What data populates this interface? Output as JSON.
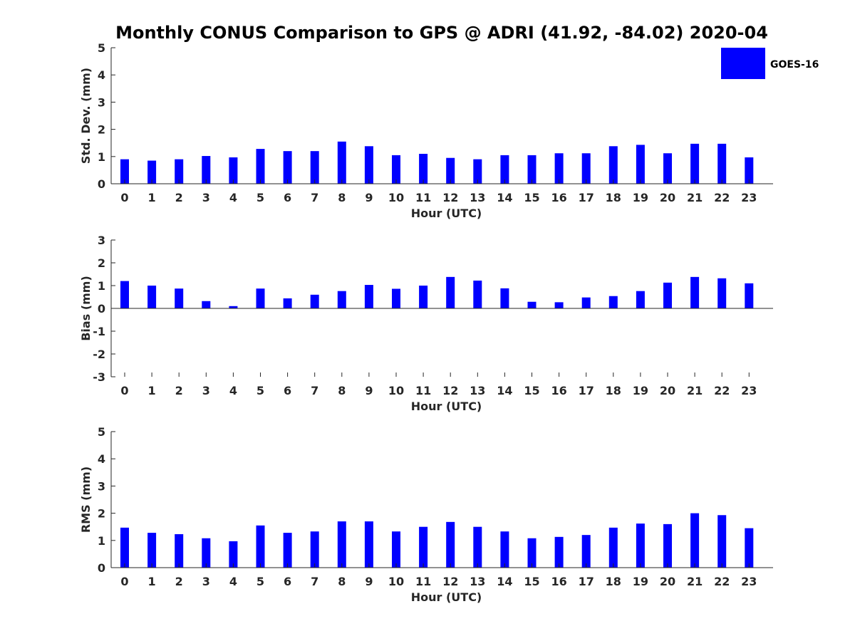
{
  "colors": {
    "bar": "#0000ff",
    "axis": "#262626",
    "text": "#000000"
  },
  "chart_data": [
    {
      "type": "bar",
      "title": "Monthly CONUS Comparison to GPS @ ADRI (41.92, -84.02) 2020-04",
      "xlabel": "Hour (UTC)",
      "ylabel": "Std. Dev. (mm)",
      "ylim": [
        0,
        5
      ],
      "yticks": [
        "0",
        "1",
        "2",
        "3",
        "4",
        "5"
      ],
      "categories": [
        "0",
        "1",
        "2",
        "3",
        "4",
        "5",
        "6",
        "7",
        "8",
        "9",
        "10",
        "11",
        "12",
        "13",
        "14",
        "15",
        "16",
        "17",
        "18",
        "19",
        "20",
        "21",
        "22",
        "23"
      ],
      "series": [
        {
          "name": "GOES-16",
          "values": [
            0.9,
            0.85,
            0.9,
            1.02,
            0.97,
            1.28,
            1.2,
            1.2,
            1.55,
            1.38,
            1.05,
            1.1,
            0.95,
            0.9,
            1.05,
            1.05,
            1.12,
            1.12,
            1.38,
            1.43,
            1.12,
            1.47,
            1.47,
            0.97
          ]
        }
      ],
      "legend": {
        "position": "top-right",
        "entries": [
          "GOES-16"
        ]
      }
    },
    {
      "type": "bar",
      "xlabel": "Hour (UTC)",
      "ylabel": "Bias (mm)",
      "ylim": [
        -3,
        3
      ],
      "yticks": [
        "-3",
        "-2",
        "-1",
        "0",
        "1",
        "2",
        "3"
      ],
      "categories": [
        "0",
        "1",
        "2",
        "3",
        "4",
        "5",
        "6",
        "7",
        "8",
        "9",
        "10",
        "11",
        "12",
        "13",
        "14",
        "15",
        "16",
        "17",
        "18",
        "19",
        "20",
        "21",
        "22",
        "23"
      ],
      "series": [
        {
          "name": "GOES-16",
          "values": [
            1.2,
            1.0,
            0.87,
            0.32,
            0.1,
            0.87,
            0.44,
            0.6,
            0.76,
            1.03,
            0.86,
            1.0,
            1.38,
            1.22,
            0.88,
            0.29,
            0.27,
            0.48,
            0.54,
            0.76,
            1.13,
            1.38,
            1.32,
            1.1
          ]
        }
      ]
    },
    {
      "type": "bar",
      "xlabel": "Hour (UTC)",
      "ylabel": "RMS (mm)",
      "ylim": [
        0,
        5
      ],
      "yticks": [
        "0",
        "1",
        "2",
        "3",
        "4",
        "5"
      ],
      "categories": [
        "0",
        "1",
        "2",
        "3",
        "4",
        "5",
        "6",
        "7",
        "8",
        "9",
        "10",
        "11",
        "12",
        "13",
        "14",
        "15",
        "16",
        "17",
        "18",
        "19",
        "20",
        "21",
        "22",
        "23"
      ],
      "series": [
        {
          "name": "GOES-16",
          "values": [
            1.47,
            1.28,
            1.23,
            1.08,
            0.97,
            1.55,
            1.28,
            1.33,
            1.7,
            1.7,
            1.33,
            1.5,
            1.68,
            1.5,
            1.33,
            1.08,
            1.13,
            1.2,
            1.47,
            1.62,
            1.6,
            2.0,
            1.93,
            1.45
          ]
        }
      ]
    }
  ]
}
